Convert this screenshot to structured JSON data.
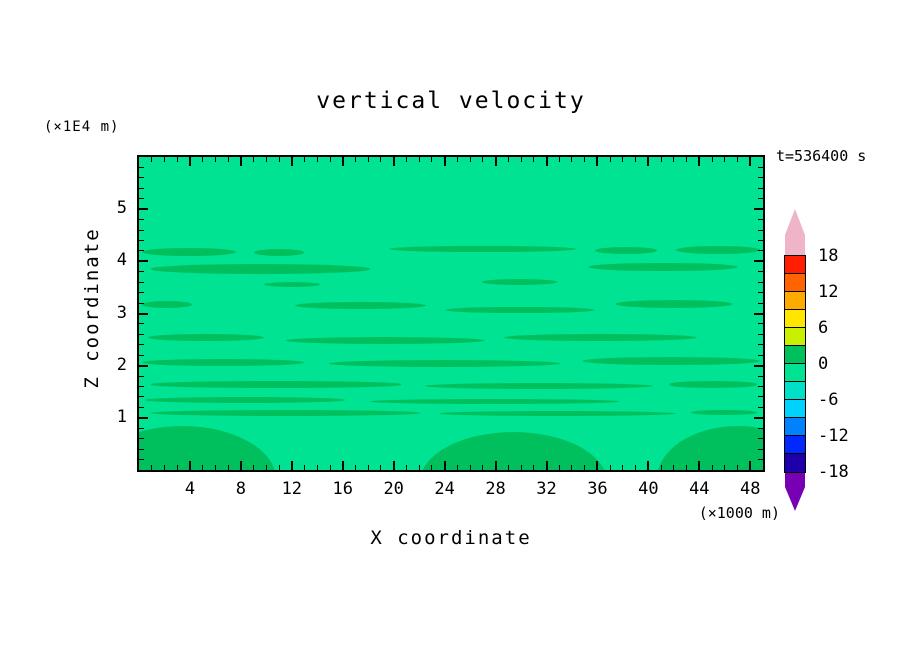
{
  "chart_data": {
    "type": "contour",
    "title": "vertical velocity",
    "time_annotation": "t=536400 s",
    "xlabel": "X coordinate",
    "ylabel": "Z coordinate",
    "x_unit": "(×1000 m)",
    "y_unit": "(×1E4 m)",
    "xlim": [
      0,
      49
    ],
    "ylim": [
      0,
      6
    ],
    "x_major_ticks": [
      4,
      8,
      12,
      16,
      20,
      24,
      28,
      32,
      36,
      40,
      44,
      48
    ],
    "x_minor_step": 1,
    "y_major_ticks": [
      1,
      2,
      3,
      4,
      5
    ],
    "y_minor_step": 0.2,
    "contour_interval": 3,
    "labeled_levels": [
      18,
      12,
      6,
      0,
      -6,
      -12,
      -18
    ],
    "background_band_range": [
      -3,
      0
    ],
    "dark_band_range": [
      0,
      3
    ],
    "bands_pct": [
      [
        0.5,
        29.0,
        15,
        2.6
      ],
      [
        18.5,
        29.3,
        8,
        2.2
      ],
      [
        40,
        28.3,
        30,
        2.2
      ],
      [
        73,
        28.8,
        10,
        2.3
      ],
      [
        86,
        28.3,
        13.5,
        2.6
      ],
      [
        2,
        34.3,
        35,
        3.0
      ],
      [
        72,
        33.8,
        24,
        2.7
      ],
      [
        20,
        40.0,
        9,
        1.6
      ],
      [
        55,
        39.0,
        12,
        1.8
      ],
      [
        0.5,
        46.0,
        8,
        2.2
      ],
      [
        25,
        46.3,
        21,
        2.4
      ],
      [
        49,
        47.8,
        24,
        2.2
      ],
      [
        76.5,
        45.8,
        18.5,
        2.4
      ],
      [
        1.5,
        56.5,
        18.5,
        2.4
      ],
      [
        23.5,
        57.5,
        32,
        2.2
      ],
      [
        58.5,
        56.5,
        31,
        2.4
      ],
      [
        0.5,
        64.4,
        26,
        2.4
      ],
      [
        30.5,
        64.9,
        37,
        2.2
      ],
      [
        71,
        63.9,
        28.5,
        2.6
      ],
      [
        2,
        71.7,
        40,
        2.0
      ],
      [
        45.8,
        72.2,
        36.5,
        1.9
      ],
      [
        85,
        71.7,
        14,
        2.0
      ],
      [
        1,
        76.7,
        32,
        1.8
      ],
      [
        37,
        77.2,
        40,
        1.7
      ],
      [
        2,
        80.9,
        43,
        1.8
      ],
      [
        48,
        81.2,
        38,
        1.6
      ],
      [
        88.5,
        80.7,
        10.5,
        1.8
      ],
      [
        -8,
        86,
        30,
        34
      ],
      [
        45,
        88,
        30,
        32
      ],
      [
        83,
        86,
        26,
        34
      ]
    ]
  },
  "colors": {
    "page_background": "#ffffff",
    "plot_background": "#00e392",
    "contour_band": "#00c05e",
    "frame": "#000000"
  },
  "colorbar": {
    "tick_labels": [
      "18",
      "12",
      "6",
      "0",
      "-6",
      "-12",
      "-18"
    ],
    "segment_colors": [
      "#ff1e00",
      "#ff6400",
      "#ffaa00",
      "#ffe600",
      "#c8f000",
      "#00c05e",
      "#00e392",
      "#00e0c8",
      "#00d2ff",
      "#0082ff",
      "#0028ff",
      "#1e00aa"
    ],
    "arrow_top_color": "#f0b4c8",
    "arrow_bottom_color": "#7800b4"
  }
}
